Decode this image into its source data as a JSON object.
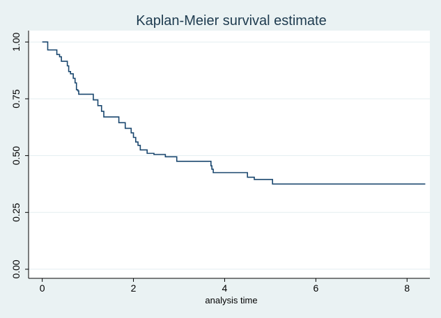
{
  "chart_data": {
    "type": "line",
    "title": "Kaplan-Meier survival estimate",
    "xlabel": "analysis time",
    "ylabel": "",
    "xlim": [
      -0.3,
      8.5
    ],
    "ylim": [
      -0.04,
      1.05
    ],
    "x_ticks": [
      0,
      2,
      4,
      6,
      8
    ],
    "x_tick_labels": [
      "0",
      "2",
      "4",
      "6",
      "8"
    ],
    "y_ticks": [
      0,
      0.25,
      0.5,
      0.75,
      1
    ],
    "y_tick_labels": [
      "0.00",
      "0.25",
      "0.50",
      "0.75",
      "1.00"
    ],
    "grid": "horizontal",
    "line_style": "step-post",
    "colors": {
      "plot_background": "#ffffff",
      "outer_background": "#eaf2f3",
      "grid": "#e3eef0",
      "line": "#1a476f",
      "title": "#1e3b4f"
    },
    "series": [
      {
        "x": [
          0,
          0.12,
          0.32,
          0.38,
          0.42,
          0.55,
          0.58,
          0.62,
          0.68,
          0.72,
          0.75,
          0.78,
          0.8,
          0.88,
          1.12,
          1.22,
          1.3,
          1.35,
          1.4,
          1.68,
          1.82,
          1.95,
          2.0,
          2.05,
          2.1,
          2.15,
          2.3,
          2.45,
          2.7,
          2.95,
          3.7,
          3.72,
          3.75,
          3.8,
          4.5,
          4.65,
          5.05,
          8.4
        ],
        "y": [
          1.0,
          0.965,
          0.945,
          0.935,
          0.915,
          0.895,
          0.87,
          0.86,
          0.84,
          0.82,
          0.79,
          0.785,
          0.77,
          0.77,
          0.745,
          0.72,
          0.695,
          0.67,
          0.67,
          0.645,
          0.62,
          0.6,
          0.58,
          0.56,
          0.545,
          0.525,
          0.51,
          0.505,
          0.495,
          0.475,
          0.455,
          0.44,
          0.425,
          0.425,
          0.405,
          0.395,
          0.375,
          0.375
        ]
      }
    ]
  }
}
